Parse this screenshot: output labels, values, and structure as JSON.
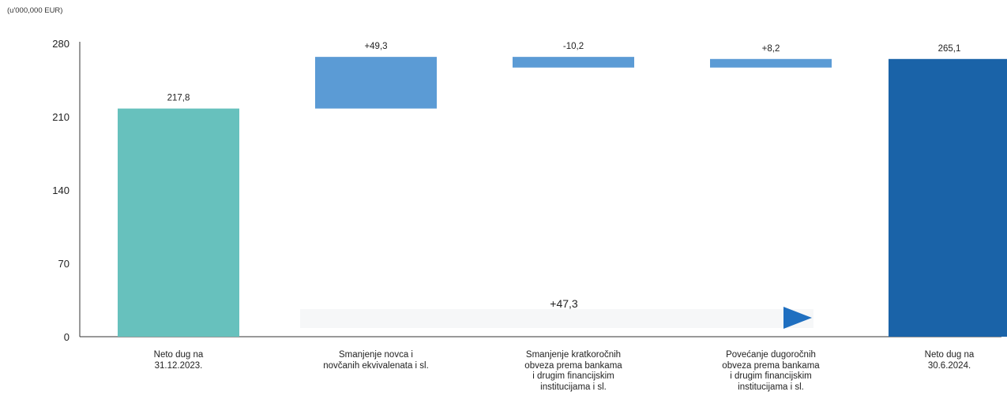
{
  "unit_label": "(u'000,000 EUR)",
  "colors": {
    "start": "#67c1bd",
    "change": "#5b9bd5",
    "end": "#1a63a8",
    "axis": "#333333"
  },
  "chart_data": {
    "type": "bar",
    "subtype": "waterfall",
    "ylim": [
      0,
      280
    ],
    "yticks": [
      0,
      70,
      140,
      210,
      280
    ],
    "grid": false,
    "categories": [
      "Neto dug na\n31.12.2023.",
      "Smanjenje novca i\nnovčanih ekvivalenata i sl.",
      "Smanjenje  kratkoročnih\nobveza prema bankama\ni drugim financijskim\ninstitucijama i sl.",
      "Povećanje dugoročnih\nobveza prema bankama\ni drugim financijskim\ninstitucijama i sl.",
      "Neto dug na\n30.6.2024."
    ],
    "bars": [
      {
        "kind": "total",
        "start": 0,
        "end": 217.8,
        "label": "217,8"
      },
      {
        "kind": "change",
        "start": 217.8,
        "end": 267.1,
        "label": "+49,3"
      },
      {
        "kind": "change",
        "start": 267.1,
        "end": 256.9,
        "label": "-10,2"
      },
      {
        "kind": "change",
        "start": 256.9,
        "end": 265.1,
        "label": "+8,2"
      },
      {
        "kind": "total",
        "start": 0,
        "end": 265.1,
        "label": "265,1"
      }
    ],
    "total_change": {
      "value": 47.3,
      "label": "+47,3"
    }
  }
}
